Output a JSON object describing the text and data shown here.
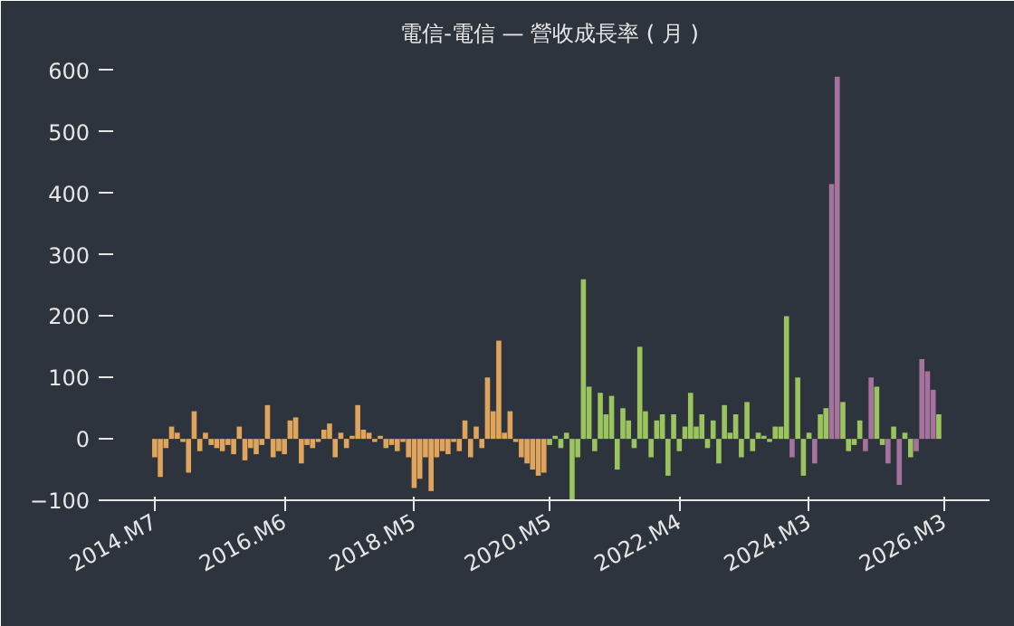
{
  "chart_data": {
    "type": "bar",
    "title": "電信-電信 — 營收成長率 ( 月 )",
    "ylim": [
      -100,
      625
    ],
    "yticks": [
      -100,
      0,
      100,
      200,
      300,
      400,
      500,
      600
    ],
    "xlim": [
      "2013-11",
      "2026-11"
    ],
    "xticks": [
      {
        "value": "2014-07",
        "label": "2014.M7"
      },
      {
        "value": "2016-06",
        "label": "2016.M6"
      },
      {
        "value": "2018-05",
        "label": "2018.M5"
      },
      {
        "value": "2020-05",
        "label": "2020.M5"
      },
      {
        "value": "2022-04",
        "label": "2022.M4"
      },
      {
        "value": "2024-03",
        "label": "2024.M3"
      },
      {
        "value": "2026-03",
        "label": "2026.M3"
      }
    ],
    "grid": false,
    "x": [
      "2014-07",
      "2014-08",
      "2014-09",
      "2014-10",
      "2014-11",
      "2014-12",
      "2015-01",
      "2015-02",
      "2015-03",
      "2015-04",
      "2015-05",
      "2015-06",
      "2015-07",
      "2015-08",
      "2015-09",
      "2015-10",
      "2015-11",
      "2015-12",
      "2016-01",
      "2016-02",
      "2016-03",
      "2016-04",
      "2016-05",
      "2016-06",
      "2016-07",
      "2016-08",
      "2016-09",
      "2016-10",
      "2016-11",
      "2016-12",
      "2017-01",
      "2017-02",
      "2017-03",
      "2017-04",
      "2017-05",
      "2017-06",
      "2017-07",
      "2017-08",
      "2017-09",
      "2017-10",
      "2017-11",
      "2017-12",
      "2018-01",
      "2018-02",
      "2018-03",
      "2018-04",
      "2018-05",
      "2018-06",
      "2018-07",
      "2018-08",
      "2018-09",
      "2018-10",
      "2018-11",
      "2018-12",
      "2019-01",
      "2019-02",
      "2019-03",
      "2019-04",
      "2019-05",
      "2019-06",
      "2019-07",
      "2019-08",
      "2019-09",
      "2019-10",
      "2019-11",
      "2019-12",
      "2020-01",
      "2020-02",
      "2020-03",
      "2020-04",
      "2020-05",
      "2020-06",
      "2020-07",
      "2020-08",
      "2020-09",
      "2020-10",
      "2020-11",
      "2020-12",
      "2021-01",
      "2021-02",
      "2021-03",
      "2021-04",
      "2021-05",
      "2021-06",
      "2021-07",
      "2021-08",
      "2021-09",
      "2021-10",
      "2021-11",
      "2021-12",
      "2022-01",
      "2022-02",
      "2022-03",
      "2022-04",
      "2022-05",
      "2022-06",
      "2022-07",
      "2022-08",
      "2022-09",
      "2022-10",
      "2022-11",
      "2022-12",
      "2023-01",
      "2023-02",
      "2023-03",
      "2023-04",
      "2023-05",
      "2023-06",
      "2023-07",
      "2023-08",
      "2023-09",
      "2023-10",
      "2023-11",
      "2023-12",
      "2024-01",
      "2024-02",
      "2024-03",
      "2024-04",
      "2024-05",
      "2024-06",
      "2024-07",
      "2024-08",
      "2024-09",
      "2024-10",
      "2024-11",
      "2024-12",
      "2025-01",
      "2025-02",
      "2025-03",
      "2025-04",
      "2025-05",
      "2025-06",
      "2025-07",
      "2025-08",
      "2025-09",
      "2025-10",
      "2025-11",
      "2025-12",
      "2026-01",
      "2026-02"
    ],
    "series": [
      {
        "color": "#e0a55c",
        "values": [
          -30,
          -62,
          -15,
          20,
          10,
          -5,
          -55,
          45,
          -20,
          10,
          -10,
          -15,
          -20,
          -10,
          -25,
          20,
          -35,
          -15,
          -25,
          -10,
          55,
          -30,
          -20,
          -25,
          30,
          35,
          -40,
          -10,
          -15,
          -5,
          15,
          25,
          -30,
          10,
          -15,
          5,
          55,
          15,
          10,
          -5,
          5,
          -15,
          -10,
          -20,
          -5,
          -30,
          -80,
          -65,
          -30,
          -85,
          -30,
          -20,
          -25,
          -5,
          -20,
          30,
          -30,
          20,
          -15,
          100,
          45,
          160,
          10,
          45,
          -5,
          -30,
          -40,
          -50,
          -60,
          -55,
          null,
          null,
          null,
          null,
          null,
          null,
          null,
          null,
          null,
          null,
          null,
          null,
          null,
          null,
          null,
          null,
          null,
          null,
          null,
          null,
          null,
          null,
          null,
          null,
          null,
          null,
          null,
          null,
          null,
          null,
          null,
          null,
          null,
          null,
          null,
          null,
          null,
          null,
          null,
          null,
          null,
          null,
          null,
          null,
          null,
          null,
          null,
          null,
          null,
          null,
          null,
          null,
          null,
          null,
          null,
          null,
          null,
          null,
          null,
          null,
          null,
          null,
          null,
          null,
          null,
          null,
          null,
          null,
          null,
          null
        ]
      },
      {
        "color": "#9bc45f",
        "values": [
          null,
          null,
          null,
          null,
          null,
          null,
          null,
          null,
          null,
          null,
          null,
          null,
          null,
          null,
          null,
          null,
          null,
          null,
          null,
          null,
          null,
          null,
          null,
          null,
          null,
          null,
          null,
          null,
          null,
          null,
          null,
          null,
          null,
          null,
          null,
          null,
          null,
          null,
          null,
          null,
          null,
          null,
          null,
          null,
          null,
          null,
          null,
          null,
          null,
          null,
          null,
          null,
          null,
          null,
          null,
          null,
          null,
          null,
          null,
          null,
          null,
          null,
          null,
          null,
          null,
          null,
          null,
          null,
          null,
          null,
          -10,
          5,
          -15,
          10,
          -100,
          -30,
          260,
          85,
          -20,
          75,
          40,
          70,
          -50,
          50,
          30,
          -15,
          150,
          45,
          -30,
          30,
          40,
          -60,
          40,
          -20,
          20,
          75,
          20,
          40,
          -15,
          30,
          -40,
          55,
          10,
          40,
          -30,
          60,
          -20,
          10,
          5,
          -5,
          20,
          20,
          200,
          null,
          100,
          -60,
          10,
          null,
          40,
          50,
          null,
          null,
          60,
          -20,
          -10,
          30,
          null,
          null,
          85,
          -10,
          null,
          20,
          null,
          10,
          -30,
          null,
          null,
          null,
          null,
          40
        ]
      },
      {
        "color": "#a6739e",
        "values": [
          null,
          null,
          null,
          null,
          null,
          null,
          null,
          null,
          null,
          null,
          null,
          null,
          null,
          null,
          null,
          null,
          null,
          null,
          null,
          null,
          null,
          null,
          null,
          null,
          null,
          null,
          null,
          null,
          null,
          null,
          null,
          null,
          null,
          null,
          null,
          null,
          null,
          null,
          null,
          null,
          null,
          null,
          null,
          null,
          null,
          null,
          null,
          null,
          null,
          null,
          null,
          null,
          null,
          null,
          null,
          null,
          null,
          null,
          null,
          null,
          null,
          null,
          null,
          null,
          null,
          null,
          null,
          null,
          null,
          null,
          null,
          null,
          null,
          null,
          null,
          null,
          null,
          null,
          null,
          null,
          null,
          null,
          null,
          null,
          null,
          null,
          null,
          null,
          null,
          null,
          null,
          null,
          null,
          null,
          null,
          null,
          null,
          null,
          null,
          null,
          null,
          null,
          null,
          null,
          null,
          null,
          null,
          null,
          null,
          null,
          null,
          null,
          null,
          -30,
          null,
          null,
          null,
          -40,
          null,
          null,
          415,
          590,
          null,
          null,
          null,
          null,
          -20,
          100,
          null,
          null,
          -40,
          null,
          -75,
          null,
          null,
          -20,
          130,
          110,
          80,
          null
        ]
      }
    ]
  }
}
